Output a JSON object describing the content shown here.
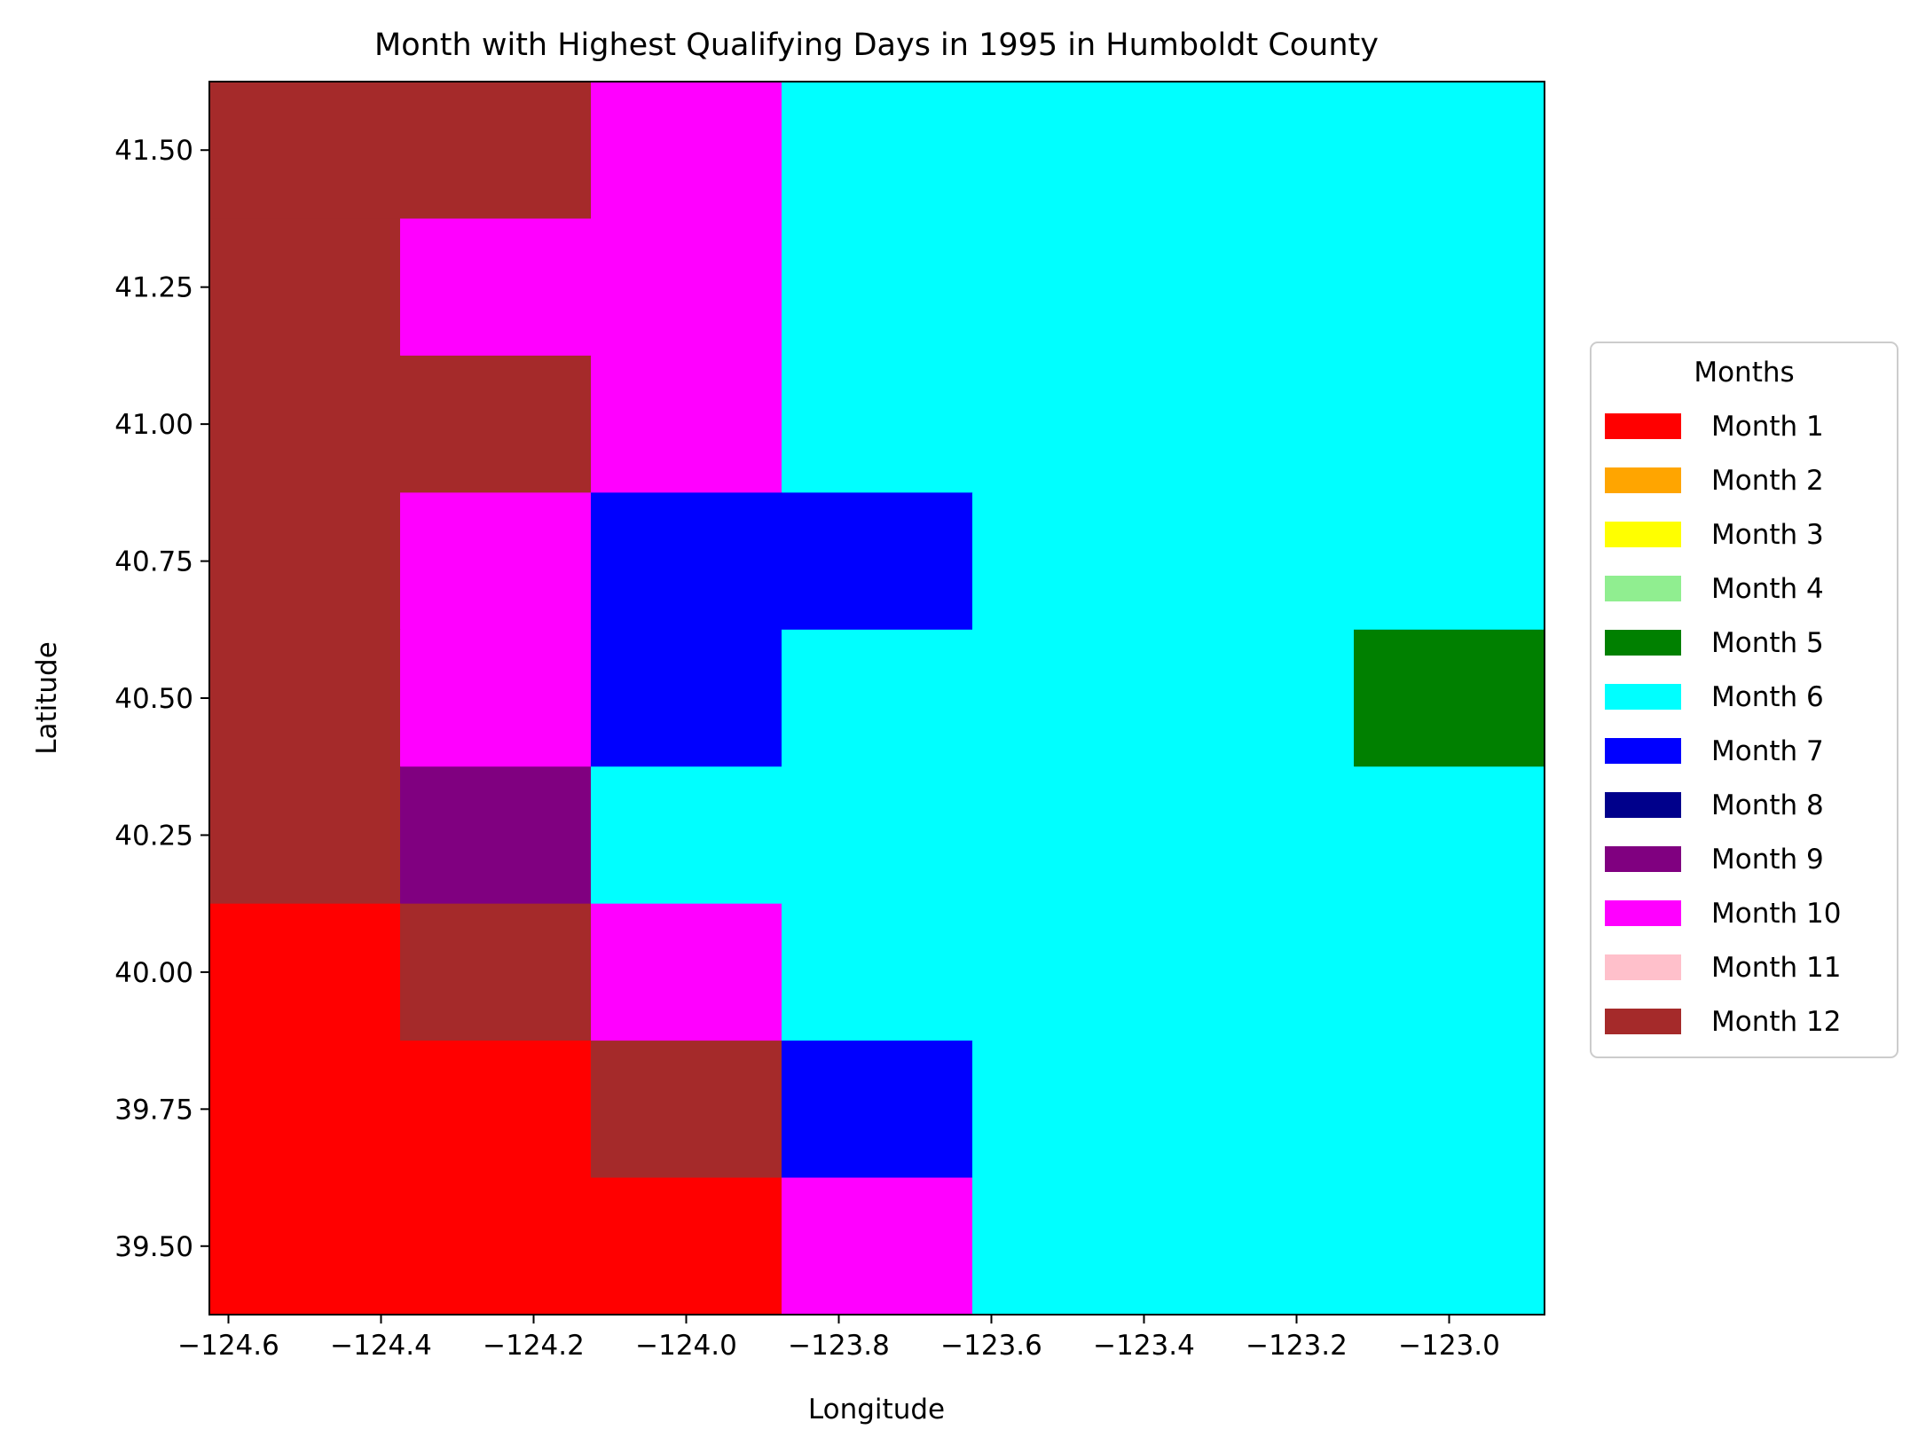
{
  "chart_data": {
    "type": "heatmap",
    "title": "Month with Highest Qualifying Days in 1995 in Humboldt County",
    "xlabel": "Longitude",
    "ylabel": "Latitude",
    "xlim": [
      -124.625,
      -122.875
    ],
    "ylim": [
      39.375,
      41.625
    ],
    "x_ticks": [
      -124.6,
      -124.4,
      -124.2,
      -124.0,
      -123.8,
      -123.6,
      -123.4,
      -123.2,
      -123.0
    ],
    "x_tick_labels": [
      "−124.6",
      "−124.4",
      "−124.2",
      "−124.0",
      "−123.8",
      "−123.6",
      "−123.4",
      "−123.2",
      "−123.0"
    ],
    "y_ticks": [
      39.5,
      39.75,
      40.0,
      40.25,
      40.5,
      40.75,
      41.0,
      41.25,
      41.5
    ],
    "y_tick_labels": [
      "39.50",
      "39.75",
      "40.00",
      "40.25",
      "40.50",
      "40.75",
      "41.00",
      "41.25",
      "41.50"
    ],
    "x_centers": [
      -124.5,
      -124.25,
      -124.0,
      -123.75,
      -123.5,
      -123.25,
      -123.0
    ],
    "y_centers": [
      41.5,
      41.25,
      41.0,
      40.75,
      40.5,
      40.25,
      40.0,
      39.75,
      39.5
    ],
    "grid_note": "rows listed from top (41.5) to bottom (39.5); values are month numbers",
    "values": [
      [
        12,
        12,
        10,
        6,
        6,
        6,
        6
      ],
      [
        12,
        10,
        10,
        6,
        6,
        6,
        6
      ],
      [
        12,
        12,
        10,
        6,
        6,
        6,
        6
      ],
      [
        12,
        10,
        7,
        7,
        6,
        6,
        6
      ],
      [
        12,
        10,
        7,
        6,
        6,
        6,
        5
      ],
      [
        12,
        9,
        6,
        6,
        6,
        6,
        6
      ],
      [
        1,
        12,
        10,
        6,
        6,
        6,
        6
      ],
      [
        1,
        1,
        12,
        7,
        6,
        6,
        6
      ],
      [
        1,
        1,
        1,
        10,
        6,
        6,
        6
      ]
    ],
    "legend": {
      "title": "Months",
      "placement": "right",
      "entries": [
        {
          "label": "Month 1",
          "month": 1,
          "color": "#ff0000"
        },
        {
          "label": "Month 2",
          "month": 2,
          "color": "#ffa500"
        },
        {
          "label": "Month 3",
          "month": 3,
          "color": "#ffff00"
        },
        {
          "label": "Month 4",
          "month": 4,
          "color": "#90ee90"
        },
        {
          "label": "Month 5",
          "month": 5,
          "color": "#008000"
        },
        {
          "label": "Month 6",
          "month": 6,
          "color": "#00ffff"
        },
        {
          "label": "Month 7",
          "month": 7,
          "color": "#0000ff"
        },
        {
          "label": "Month 8",
          "month": 8,
          "color": "#00008b"
        },
        {
          "label": "Month 9",
          "month": 9,
          "color": "#800080"
        },
        {
          "label": "Month 10",
          "month": 10,
          "color": "#ff00ff"
        },
        {
          "label": "Month 11",
          "month": 11,
          "color": "#ffc0cb"
        },
        {
          "label": "Month 12",
          "month": 12,
          "color": "#a52a2a"
        }
      ]
    },
    "grid": false
  }
}
